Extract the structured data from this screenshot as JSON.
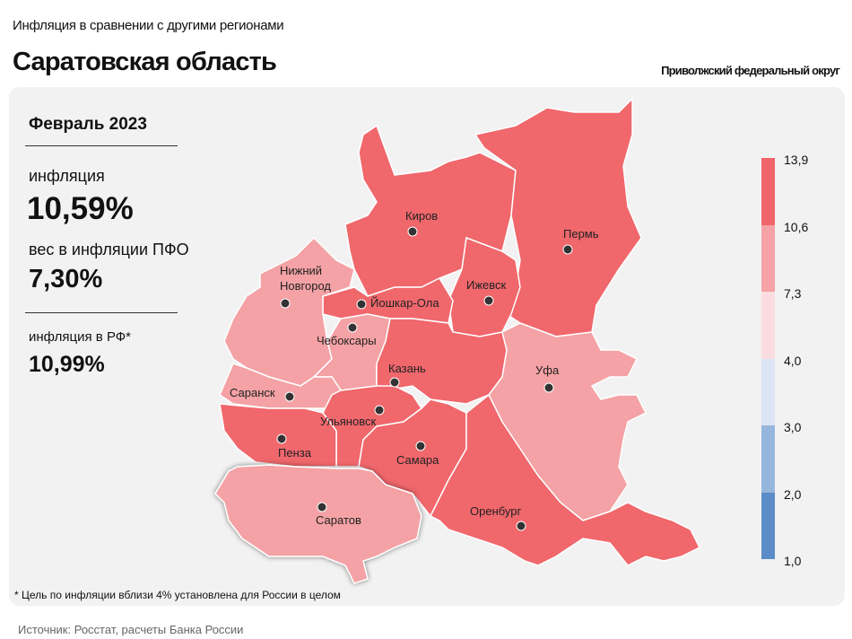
{
  "header": {
    "subtitle": "Инфляция в сравнении с другими регионами",
    "title": "Саратовская область",
    "district": "Приволжский федеральный округ"
  },
  "info": {
    "period": "Февраль 2023",
    "inflation_label": "инфляция",
    "inflation_value": "10,59%",
    "weight_label": "вес в инфляции ПФО",
    "weight_value": "7,30%",
    "rf_label": "инфляция в РФ*",
    "rf_value": "10,99%"
  },
  "legend": {
    "ticks": [
      "13,9",
      "10,6",
      "7,3",
      "4,0",
      "3,0",
      "2,0",
      "1,0"
    ],
    "colors": [
      "#f0646b",
      "#f5a3a6",
      "#fbdde1",
      "#dbe5f3",
      "#97b6dd",
      "#5b8cc7"
    ]
  },
  "map": {
    "colors": {
      "high": "#f0676c",
      "mid": "#f4a2a5"
    },
    "highlighted": "Саратов",
    "regions": [
      {
        "city": "Киров",
        "class": "high"
      },
      {
        "city": "Пермь",
        "class": "high"
      },
      {
        "city": "Ижевск",
        "class": "high"
      },
      {
        "city": "Йошкар-Ола",
        "class": "high"
      },
      {
        "city": "Нижний Новгород",
        "class": "mid"
      },
      {
        "city": "Чебоксары",
        "class": "mid"
      },
      {
        "city": "Казань",
        "class": "high"
      },
      {
        "city": "Уфа",
        "class": "mid"
      },
      {
        "city": "Саранск",
        "class": "mid"
      },
      {
        "city": "Ульяновск",
        "class": "high"
      },
      {
        "city": "Пенза",
        "class": "high"
      },
      {
        "city": "Самара",
        "class": "high"
      },
      {
        "city": "Саратов",
        "class": "mid"
      },
      {
        "city": "Оренбург",
        "class": "high"
      }
    ],
    "label_nn_1": "Нижний",
    "label_nn_2": "Новгород"
  },
  "footnote": "* Цель по инфляции вблизи 4% установлена для России в целом",
  "source": "Источник: Росстат, расчеты Банка России"
}
